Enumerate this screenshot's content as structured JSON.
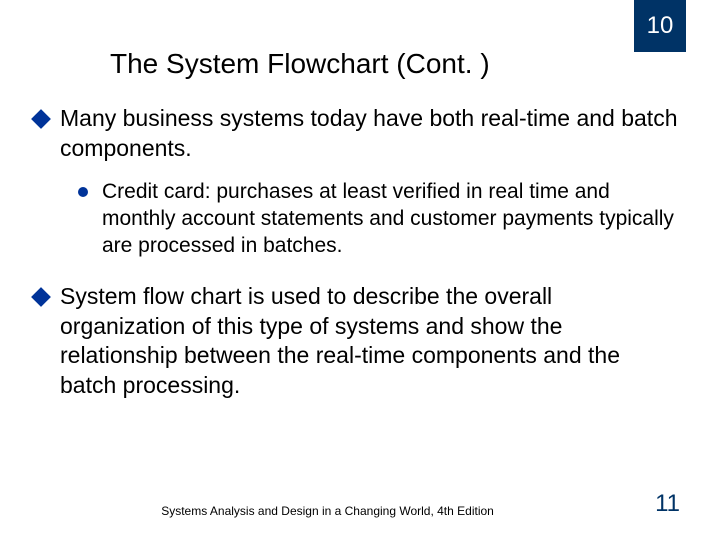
{
  "chapter_number": "10",
  "title": "The System Flowchart (Cont. )",
  "bullets": [
    {
      "level": 1,
      "text": "Many business systems today have both real-time and batch components."
    },
    {
      "level": 2,
      "text": " Credit card: purchases at least verified in real time and monthly account statements and customer payments typically are processed in batches."
    },
    {
      "level": 1,
      "text": "System flow chart is used to describe the overall organization of this type of systems and show the relationship between the real-time components and the batch processing."
    }
  ],
  "footer_text": "Systems Analysis and Design in a Changing World, 4th Edition",
  "page_number": "11",
  "colors": {
    "accent": "#003366",
    "bullet": "#003399",
    "background": "#ffffff",
    "text": "#000000"
  }
}
